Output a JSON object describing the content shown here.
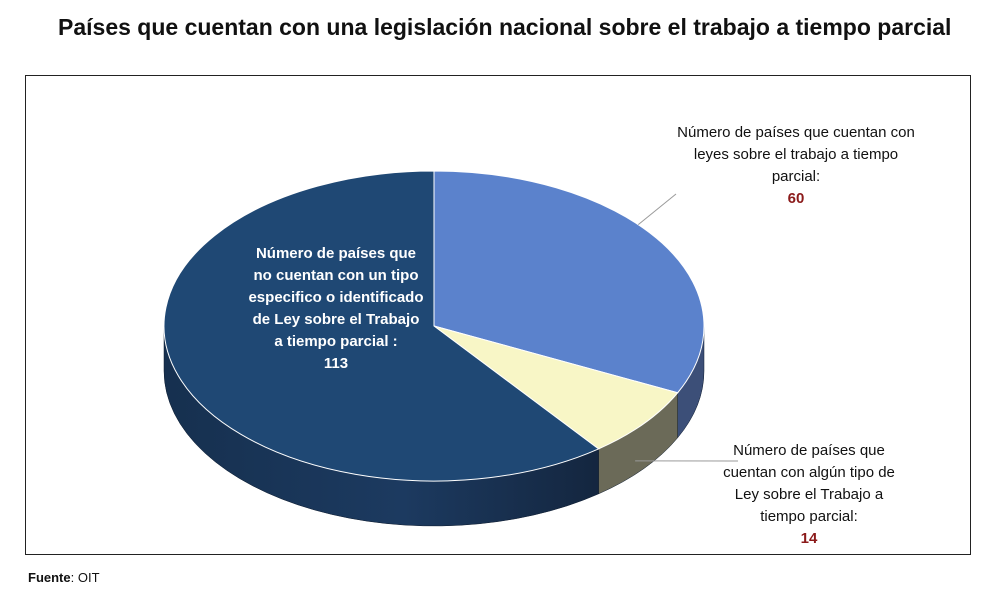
{
  "colors": {
    "slice_blue": "#5b82cc",
    "slice_cream": "#f8f6c6",
    "slice_navy": "#1f4874",
    "side_blue": "#3c4f78",
    "side_cream": "#6b6a58",
    "side_navy_dark": "#14263f",
    "value_red": "#8b1a1a"
  },
  "chart_data": {
    "type": "pie",
    "title": "Países que cuentan con una legislación nacional sobre el trabajo a tiempo parcial",
    "slices": [
      {
        "label": "Número de países que cuentan con leyes sobre el trabajo a tiempo parcial:",
        "value": 60
      },
      {
        "label": "Número de países que cuentan con algún tipo de Ley sobre el Trabajo a tiempo parcial:",
        "value": 14
      },
      {
        "label": "Número de países que no cuentan con un tipo especifico o identificado de Ley sobre el Trabajo a tiempo parcial :",
        "value": 113
      }
    ]
  },
  "labels": {
    "slice1_lines": [
      "Número de países que cuentan con",
      "leyes sobre el trabajo a tiempo",
      "parcial:"
    ],
    "slice1_value": "60",
    "slice2_lines": [
      "Número de países que",
      "cuentan con algún tipo de",
      "Ley sobre el Trabajo a",
      "tiempo parcial:"
    ],
    "slice2_value": "14",
    "slice3_lines": [
      "Número de países que",
      "no cuentan con un tipo",
      "especifico o identificado",
      "de Ley sobre el Trabajo",
      "a tiempo parcial :"
    ],
    "slice3_value": "113"
  },
  "source": {
    "label": "Fuente",
    "text": ": OIT"
  }
}
